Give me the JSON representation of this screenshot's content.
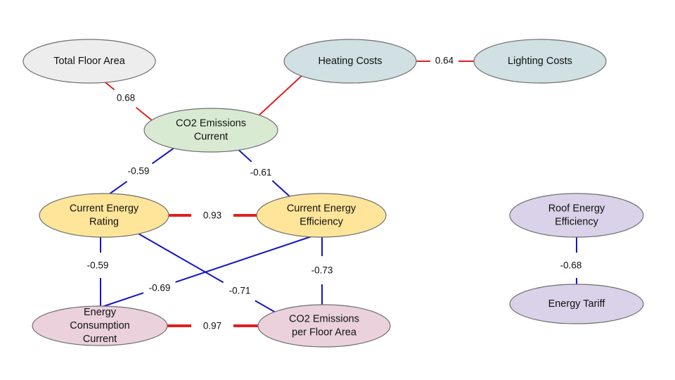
{
  "colors": {
    "positive_edge": "#e02020",
    "negative_edge": "#1414c8",
    "gray_node": "#ededed",
    "teal_node": "#d0e0e3",
    "green_node": "#d9ead3",
    "yellow_node": "#ffe599",
    "pink_node": "#ead1dc",
    "purple_node": "#d9d2e9"
  },
  "nodes": [
    {
      "id": "total-floor-area",
      "lines": [
        "Total Floor Area"
      ],
      "fill": "gray_node"
    },
    {
      "id": "heating-costs",
      "lines": [
        "Heating Costs"
      ],
      "fill": "teal_node"
    },
    {
      "id": "lighting-costs",
      "lines": [
        "Lighting Costs"
      ],
      "fill": "teal_node"
    },
    {
      "id": "co2-emissions-current",
      "lines": [
        "CO2 Emissions",
        "Current"
      ],
      "fill": "green_node"
    },
    {
      "id": "current-energy-rating",
      "lines": [
        "Current Energy",
        "Rating"
      ],
      "fill": "yellow_node"
    },
    {
      "id": "current-energy-efficiency",
      "lines": [
        "Current Energy",
        "Efficiency"
      ],
      "fill": "yellow_node"
    },
    {
      "id": "energy-consumption-current",
      "lines": [
        "Energy",
        "Consumption",
        "Current"
      ],
      "fill": "pink_node"
    },
    {
      "id": "co2-emissions-per-floor-area",
      "lines": [
        "CO2 Emissions",
        "per Floor Area"
      ],
      "fill": "pink_node"
    },
    {
      "id": "roof-energy-efficiency",
      "lines": [
        "Roof Energy",
        "Efficiency"
      ],
      "fill": "purple_node"
    },
    {
      "id": "energy-tariff",
      "lines": [
        "Energy Tariff"
      ],
      "fill": "purple_node"
    }
  ],
  "edges": [
    {
      "from": "total-floor-area",
      "to": "co2-emissions-current",
      "label": "0.68",
      "sign": "positive"
    },
    {
      "from": "heating-costs",
      "to": "co2-emissions-current",
      "label": "",
      "sign": "positive"
    },
    {
      "from": "heating-costs",
      "to": "lighting-costs",
      "label": "0.64",
      "sign": "positive"
    },
    {
      "from": "co2-emissions-current",
      "to": "current-energy-rating",
      "label": "-0.59",
      "sign": "negative"
    },
    {
      "from": "co2-emissions-current",
      "to": "current-energy-efficiency",
      "label": "-0.61",
      "sign": "negative"
    },
    {
      "from": "current-energy-rating",
      "to": "current-energy-efficiency",
      "label": "0.93",
      "sign": "positive"
    },
    {
      "from": "current-energy-rating",
      "to": "energy-consumption-current",
      "label": "-0.59",
      "sign": "negative"
    },
    {
      "from": "current-energy-efficiency",
      "to": "energy-consumption-current",
      "label": "-0.69",
      "sign": "negative"
    },
    {
      "from": "current-energy-rating",
      "to": "co2-emissions-per-floor-area",
      "label": "-0.71",
      "sign": "negative"
    },
    {
      "from": "current-energy-efficiency",
      "to": "co2-emissions-per-floor-area",
      "label": "-0.73",
      "sign": "negative"
    },
    {
      "from": "energy-consumption-current",
      "to": "co2-emissions-per-floor-area",
      "label": "0.97",
      "sign": "positive"
    },
    {
      "from": "roof-energy-efficiency",
      "to": "energy-tariff",
      "label": "-0.68",
      "sign": "negative"
    }
  ]
}
